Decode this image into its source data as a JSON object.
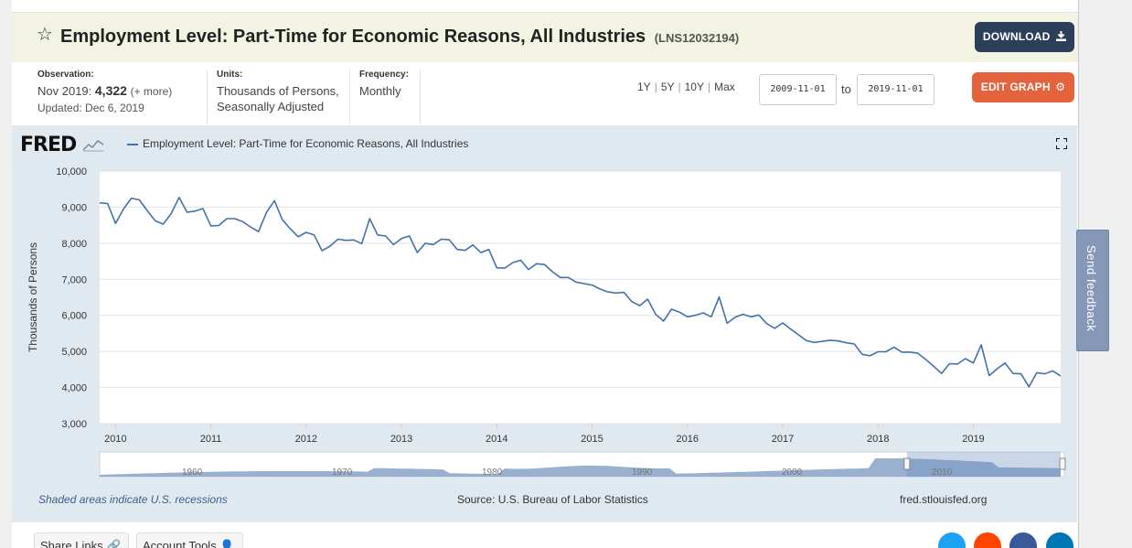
{
  "title": "Employment Level: Part-Time for Economic Reasons, All Industries",
  "series_id": "(LNS12032194)",
  "download_label": "DOWNLOAD",
  "edit_label": "EDIT GRAPH",
  "observation": {
    "label": "Observation:",
    "date": "Nov 2019:",
    "value": "4,322",
    "more": "(+ more)",
    "updated": "Updated: Dec 6, 2019"
  },
  "units": {
    "label": "Units:",
    "line1": "Thousands of Persons,",
    "line2": "Seasonally Adjusted"
  },
  "frequency": {
    "label": "Frequency:",
    "value": "Monthly"
  },
  "ranges": [
    "1Y",
    "5Y",
    "10Y",
    "Max"
  ],
  "date_from": "2009-11-01",
  "date_to": "2019-11-01",
  "to_label": "to",
  "logo": "FRED",
  "legend": "Employment Level: Part-Time for Economic Reasons, All Industries",
  "footer": {
    "recession_note": "Shaded areas indicate U.S. recessions",
    "source": "Source: U.S. Bureau of Labor Statistics",
    "site": "fred.stlouisfed.org"
  },
  "bottom_buttons": {
    "share": "Share Links",
    "account": "Account Tools"
  },
  "feedback": "Send feedback",
  "colors": {
    "series": "#4572a7",
    "download": "#2c3e5a",
    "edit": "#e4633d",
    "graph_bg": "#e1e9f0",
    "navigator_fill": "#7f9cc2"
  },
  "chart_data": {
    "type": "line",
    "title": "Employment Level: Part-Time for Economic Reasons, All Industries",
    "xlabel": "",
    "ylabel": "Thousands of Persons",
    "ylim": [
      3000,
      10000
    ],
    "y_ticks": [
      3000,
      4000,
      5000,
      6000,
      7000,
      8000,
      9000,
      10000
    ],
    "y_tick_labels": [
      "3,000",
      "4,000",
      "5,000",
      "6,000",
      "7,000",
      "8,000",
      "9,000",
      "10,000"
    ],
    "x_ticks": [
      "2010",
      "2011",
      "2012",
      "2013",
      "2014",
      "2015",
      "2016",
      "2017",
      "2018",
      "2019"
    ],
    "x_start": "2009-11",
    "x_end": "2019-11",
    "grid": true,
    "series": [
      {
        "name": "Employment Level: Part-Time for Economic Reasons, All Industries",
        "values": [
          9120,
          9100,
          8550,
          8950,
          9250,
          9200,
          8900,
          8620,
          8530,
          8820,
          9270,
          8860,
          8890,
          8960,
          8480,
          8490,
          8680,
          8680,
          8600,
          8450,
          8320,
          8850,
          9180,
          8650,
          8400,
          8180,
          8300,
          8230,
          7790,
          7920,
          8110,
          8080,
          8090,
          7990,
          8680,
          8230,
          8200,
          7960,
          8130,
          8200,
          7740,
          8000,
          7960,
          8110,
          8100,
          7830,
          7800,
          7950,
          7740,
          7830,
          7320,
          7310,
          7460,
          7530,
          7270,
          7430,
          7410,
          7210,
          7050,
          7050,
          6920,
          6880,
          6840,
          6730,
          6650,
          6620,
          6640,
          6380,
          6270,
          6450,
          6030,
          5840,
          6170,
          6090,
          5960,
          6000,
          6070,
          5960,
          6510,
          5780,
          5950,
          6030,
          5960,
          6010,
          5770,
          5640,
          5790,
          5620,
          5460,
          5300,
          5250,
          5280,
          5310,
          5290,
          5240,
          5210,
          4920,
          4880,
          4990,
          4990,
          5120,
          4980,
          4980,
          4950,
          4780,
          4590,
          4390,
          4660,
          4650,
          4800,
          4680,
          5180,
          4330,
          4520,
          4680,
          4390,
          4380,
          4020,
          4410,
          4380,
          4460,
          4322
        ]
      }
    ],
    "navigator_labels": [
      "1960",
      "1970",
      "1980",
      "1990",
      "2000",
      "2010"
    ]
  }
}
